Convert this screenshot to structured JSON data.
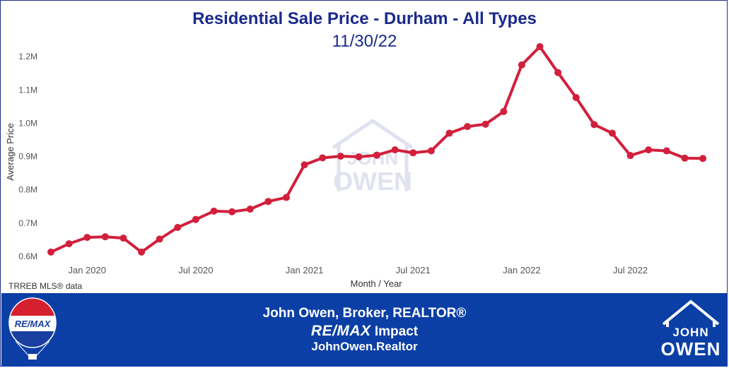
{
  "chart_data": {
    "type": "line",
    "title": "Residential Sale Price - Durham - All Types",
    "subtitle": "11/30/22",
    "xlabel": "Month / Year",
    "ylabel": "Average Price",
    "x_ticks": [
      "Jan 2020",
      "Jul 2020",
      "Jan 2021",
      "Jul 2021",
      "Jan 2022",
      "Jul 2022"
    ],
    "y_ticks": [
      "0.6M",
      "0.7M",
      "0.8M",
      "0.9M",
      "1.0M",
      "1.1M",
      "1.2M"
    ],
    "ylim": [
      0.6,
      1.25
    ],
    "grid": false,
    "series": [
      {
        "color": "#d21f3c",
        "x": [
          "2019-11",
          "2019-12",
          "2020-01",
          "2020-02",
          "2020-03",
          "2020-04",
          "2020-05",
          "2020-06",
          "2020-07",
          "2020-08",
          "2020-09",
          "2020-10",
          "2020-11",
          "2020-12",
          "2021-01",
          "2021-02",
          "2021-03",
          "2021-04",
          "2021-05",
          "2021-06",
          "2021-07",
          "2021-08",
          "2021-09",
          "2021-10",
          "2021-11",
          "2021-12",
          "2022-01",
          "2022-02",
          "2022-03",
          "2022-04",
          "2022-05",
          "2022-06",
          "2022-07",
          "2022-08",
          "2022-09",
          "2022-10",
          "2022-11"
        ],
        "values": [
          0.613,
          0.638,
          0.657,
          0.659,
          0.655,
          0.613,
          0.652,
          0.687,
          0.711,
          0.736,
          0.734,
          0.742,
          0.765,
          0.777,
          0.875,
          0.896,
          0.901,
          0.899,
          0.904,
          0.92,
          0.911,
          0.917,
          0.97,
          0.99,
          0.997,
          1.035,
          1.175,
          1.23,
          1.152,
          1.077,
          0.996,
          0.97,
          0.903,
          0.92,
          0.917,
          0.895,
          0.894
        ]
      }
    ]
  },
  "source_note": "TRREB MLS® data",
  "watermark": {
    "line1": "JOHN",
    "line2": "OWEN"
  },
  "footer": {
    "line1": "John Owen, Broker, REALTOR®",
    "brand": "RE/MAX",
    "brand_suffix": "Impact",
    "line3": "JohnOwen.Realtor",
    "balloon_text": "RE/MAX",
    "logo_line1": "JOHN",
    "logo_line2": "OWEN"
  },
  "colors": {
    "line": "#d21f3c",
    "title": "#1a2a8c",
    "footer_bg": "#0b3fa6"
  }
}
